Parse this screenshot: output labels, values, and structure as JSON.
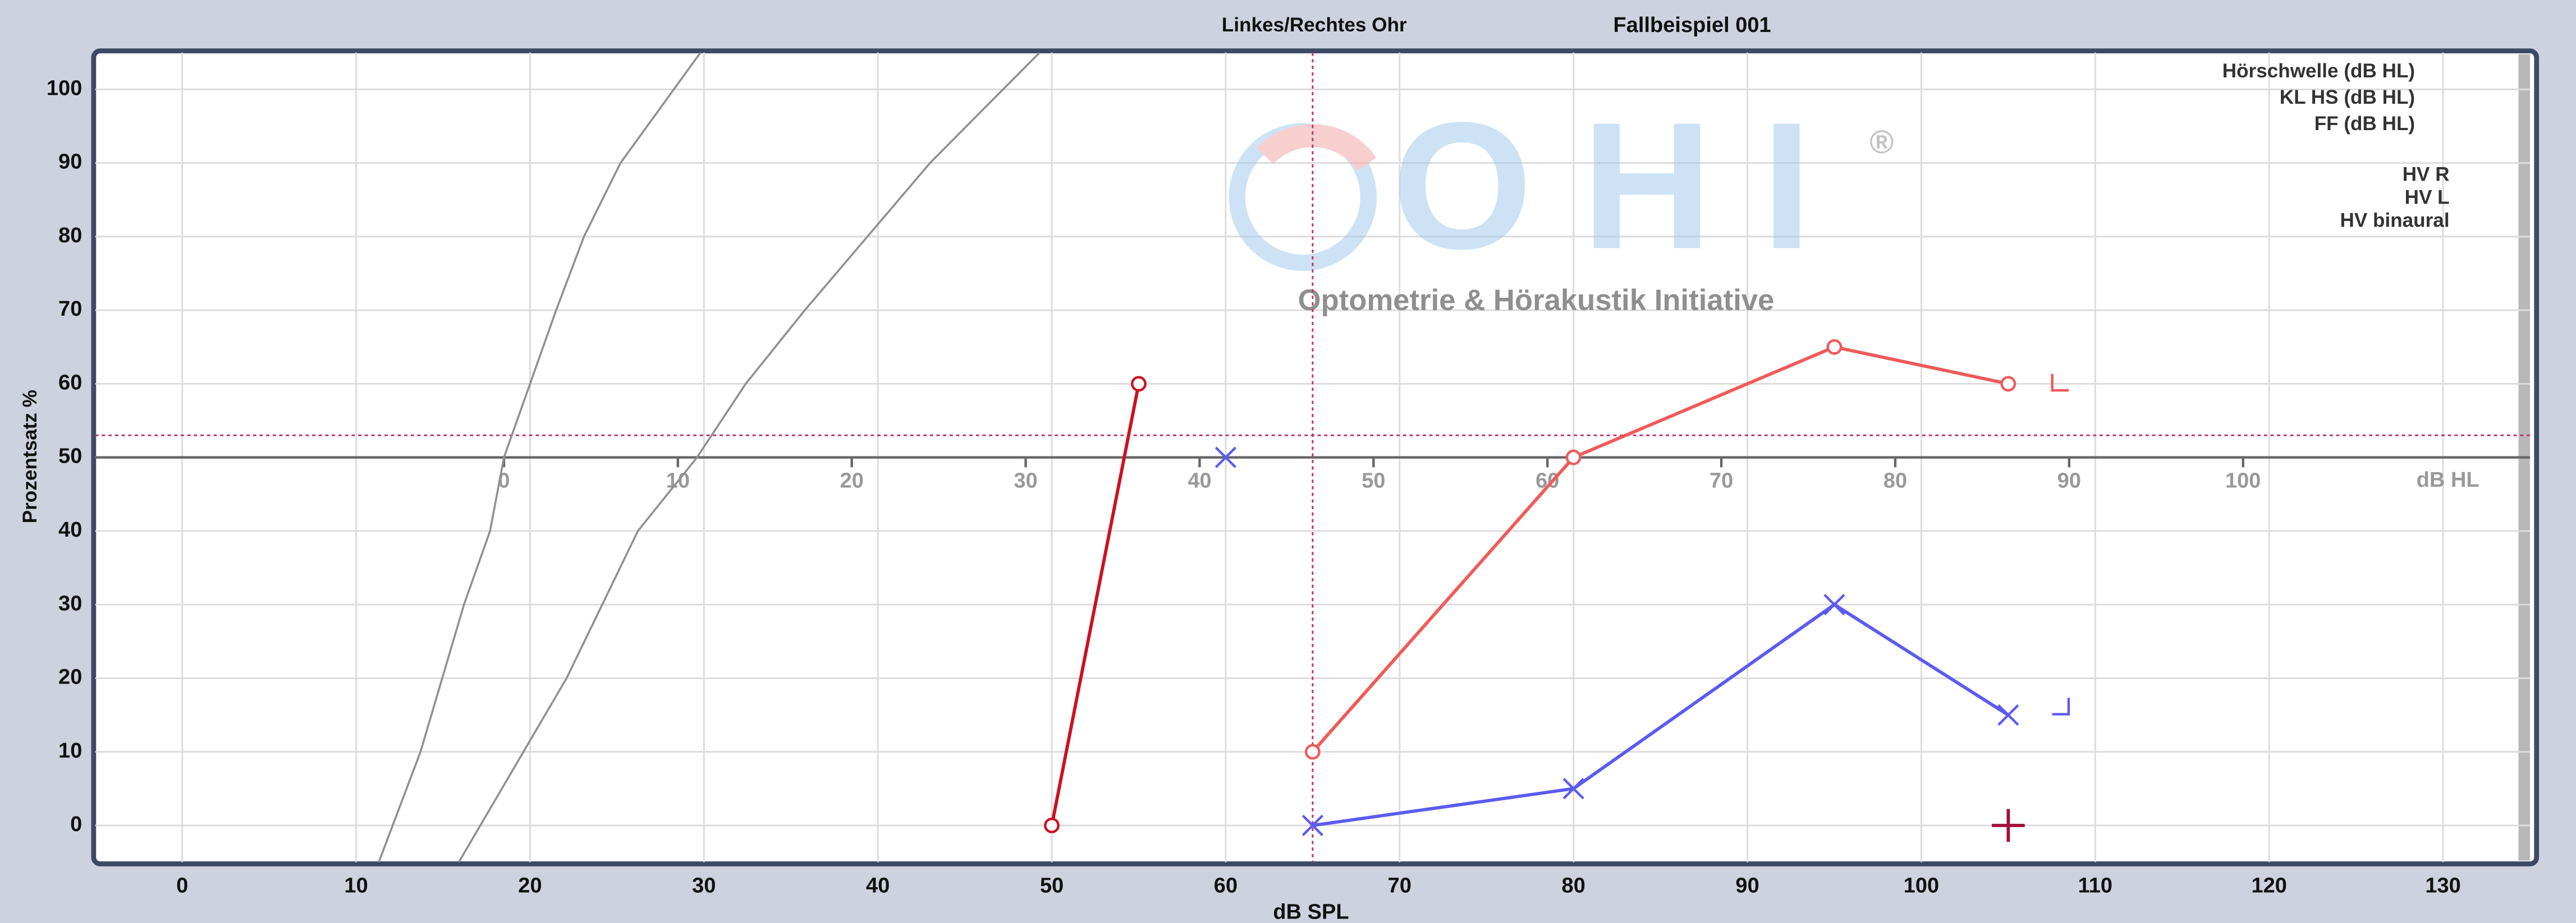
{
  "chart_data": {
    "type": "line",
    "header_left": "Linkes/Rechtes Ohr",
    "header_right": "Fallbeispiel 001",
    "xlabel": "dB SPL",
    "ylabel": "Prozentsatz %",
    "xlim": [
      -5,
      135
    ],
    "xticks": [
      0,
      10,
      20,
      30,
      40,
      50,
      60,
      70,
      80,
      90,
      100,
      110,
      120,
      130
    ],
    "ylim": [
      -5,
      105
    ],
    "yticks": [
      0,
      10,
      20,
      30,
      40,
      50,
      60,
      70,
      80,
      90,
      100
    ],
    "x2label": "dB HL",
    "x2lim": [
      -23.5,
      116.5
    ],
    "x2ticks": [
      0,
      10,
      20,
      30,
      40,
      50,
      60,
      70,
      80,
      90,
      100
    ],
    "grid": true,
    "crosshair": {
      "x": 65,
      "y": 53
    },
    "legend": [
      "Hörschwelle (dB HL)",
      "KL HS (dB HL)",
      "FF (dB HL)",
      "HV R",
      "HV L",
      "HV binaural"
    ],
    "watermark": {
      "logo": "OHI",
      "mark": "®",
      "text": "Optometrie & Hörakustik Initiative"
    },
    "series": [
      {
        "color": "#8f8f8f",
        "marker": "none",
        "x": [
          11.3,
          13.7,
          16.2,
          17.7,
          18.5,
          20,
          21.5,
          23.1,
          25.2,
          29.8
        ],
        "values": [
          -5,
          10,
          30,
          40,
          50,
          60,
          70,
          80,
          90,
          105
        ]
      },
      {
        "color": "#8f8f8f",
        "marker": "none",
        "x": [
          15.9,
          22.1,
          26.2,
          29.6,
          32.4,
          35.8,
          39.4,
          43,
          49.3
        ],
        "values": [
          -5,
          20,
          40,
          50,
          60,
          70,
          80,
          90,
          105
        ]
      },
      {
        "color": "#cc1122",
        "marker": "circle",
        "x": [
          50,
          55
        ],
        "values": [
          0,
          60
        ]
      },
      {
        "color": "#f05a5a",
        "marker": "circle",
        "x": [
          65,
          80,
          95,
          105
        ],
        "values": [
          10,
          50,
          65,
          60
        ]
      },
      {
        "color": "#5b5bf0",
        "marker": "cross",
        "x": [
          65,
          80,
          95,
          105
        ],
        "values": [
          0,
          5,
          30,
          15
        ]
      },
      {
        "color": "#5b5bf0",
        "marker": "cross",
        "x": [
          60
        ],
        "values": [
          50
        ]
      },
      {
        "color": "#a0103a",
        "marker": "plus",
        "x": [
          105
        ],
        "values": [
          0
        ]
      },
      {
        "color": "#f05a5a",
        "marker": "corner-bl",
        "x": [
          108
        ],
        "values": [
          60
        ]
      },
      {
        "color": "#5b5bf0",
        "marker": "corner-br",
        "x": [
          108
        ],
        "values": [
          16
        ]
      }
    ]
  }
}
